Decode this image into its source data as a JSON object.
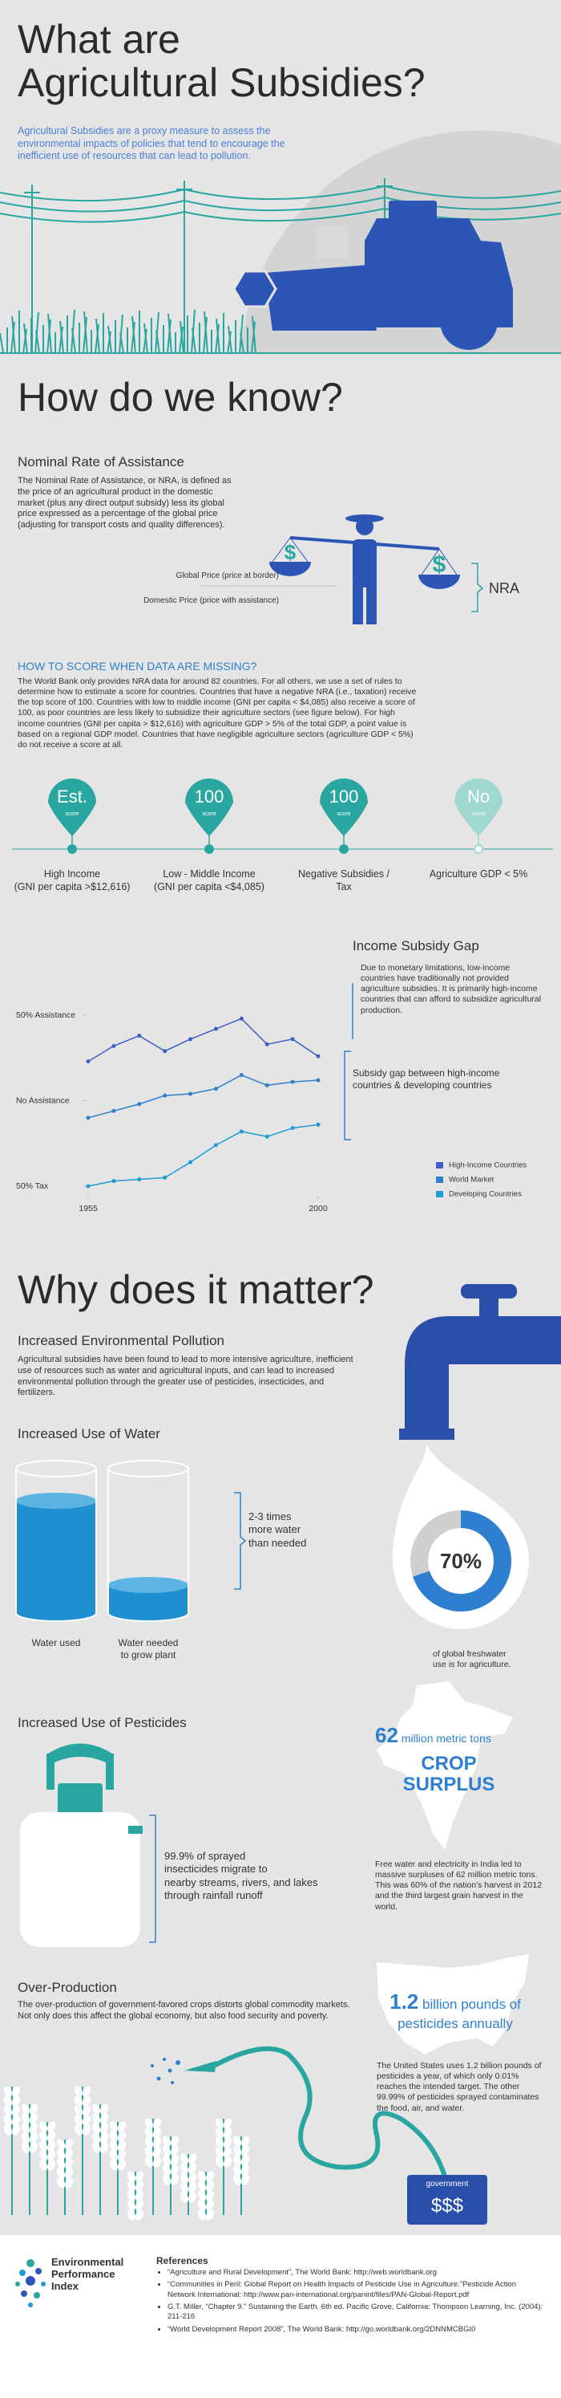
{
  "header": {
    "title": "What are\nAgricultural Subsidies?",
    "intro": "Agricultural Subsidies are a proxy measure to assess the environmental impacts of policies that tend to encourage the inefficient use of resources that can lead to pollution."
  },
  "how": {
    "title": "How do we know?",
    "nra_heading": "Nominal Rate of Assistance",
    "nra_text": "The Nominal Rate of Assistance, or NRA, is defined as the price of an agricultural product in the domestic market (plus any direct output subsidy) less its global price expressed as a percentage of the global price (adjusting for transport costs and quality differences).",
    "global_price": "Global Price (price at border)",
    "domestic_price": "Domestic Price (price with assistance)",
    "nra_label": "NRA",
    "missing_heading": "HOW TO SCORE WHEN DATA ARE MISSING?",
    "missing_text": "The World Bank only provides NRA data for around 82 countries. For all others, we use a set of rules to determine how to estimate a score for countries. Countries that have a negative NRA (i.e., taxation) receive the top score of 100. Countries with low to middle income (GNI per capita < $4,085) also receive a score of 100, as poor countries are less likely to subsidize their agriculture sectors (see figure below). For high income countries (GNI per capita > $12,616) with agriculture GDP > 5% of the total GDP, a point value is based on a regional GDP model. Countries that have negligible agriculture sectors (agriculture GDP < 5%) do not receive a score at all.",
    "pins": [
      {
        "value": "Est.",
        "unit": "score",
        "caption": "High Income\n(GNI per capita >$12,616)"
      },
      {
        "value": "100",
        "unit": "score",
        "caption": "Low - Middle Income\n(GNI per capita <$4,085)"
      },
      {
        "value": "100",
        "unit": "score",
        "caption": "Negative Subsidies /\nTax"
      },
      {
        "value": "No",
        "unit": "score",
        "caption": "Agriculture GDP < 5%"
      }
    ],
    "gap_heading": "Income Subsidy Gap",
    "gap_text": "Due to monetary limitations, low-income countries have traditionally not provided agriculture subsidies. It is primarily high-income countries that can afford to subsidize agricultural production.",
    "gap_note": "Subsidy gap between high-income countries & developing countries"
  },
  "chart_data": {
    "type": "line",
    "x": [
      1955,
      1960,
      1965,
      1970,
      1975,
      1980,
      1985,
      1990,
      1995,
      2000
    ],
    "xlim": [
      1955,
      2000
    ],
    "xticks": [
      1955,
      2000
    ],
    "ylim": [
      -50,
      50
    ],
    "yticks": [
      {
        "value": 50,
        "label": "50%  Assistance"
      },
      {
        "value": 0,
        "label": "No Assistance"
      },
      {
        "value": -50,
        "label": "50% Tax"
      }
    ],
    "legend": "bottom-right",
    "series": [
      {
        "name": "High-Income Countries",
        "color": "#3b5fc4",
        "values": [
          23,
          32,
          38,
          29,
          36,
          42,
          48,
          33,
          36,
          26
        ]
      },
      {
        "name": "World Market",
        "color": "#2f7fcc",
        "values": [
          -10,
          -6,
          -2,
          3,
          4,
          7,
          15,
          9,
          11,
          12
        ]
      },
      {
        "name": "Developing Countries",
        "color": "#1e9ad6",
        "values": [
          -50,
          -47,
          -46,
          -45,
          -36,
          -26,
          -18,
          -21,
          -16,
          -14
        ]
      }
    ]
  },
  "why": {
    "title": "Why does it matter?",
    "pollution_heading": "Increased Environmental Pollution",
    "pollution_text": "Agricultural subsidies have been found to lead to more intensive agriculture, inefficient use of resources such as water and agricultural inputs, and can lead to increased environmental pollution through the greater use of pesticides, insecticides, and fertilizers.",
    "water_heading": "Increased Use of Water",
    "water_note": "2-3 times\nmore water\nthan needed",
    "water_used": "Water used",
    "water_needed": "Water needed\nto grow plant",
    "freshwater": {
      "value": 70,
      "value_label": "70%",
      "caption": "of global freshwater\nuse is for agriculture."
    },
    "pesticides_heading": "Increased Use of Pesticides",
    "pesticides_note": "99.9% of sprayed\ninsecticides migrate to\nnearby streams, rivers, and lakes\nthrough rainfall runoff",
    "crop_number": "62",
    "crop_unit": " million metric tons",
    "crop_title": "CROP\nSURPLUS",
    "crop_text": "Free water and electricity in India led to massive surpluses of 62 million metric tons. This was 60% of the nation's harvest in 2012 and the third largest grain harvest in the world.",
    "overproduction_heading": "Over-Production",
    "overproduction_text": "The over-production of government-favored crops distorts global commodity markets. Not only does this affect the global economy, but also food security and poverty.",
    "us_number": "1.2",
    "us_unit": " billion pounds of\npesticides annually",
    "us_text": "The United States uses 1.2 billion pounds of pesticides a year, of which only 0.01% reaches the intended target. The other 99.99% of pesticides sprayed contaminates the food, air, and water.",
    "government": "government",
    "money": "$$$"
  },
  "footer": {
    "logo": "Environmental\nPerformance\nIndex",
    "references_heading": "References",
    "references": [
      "“Agriculture and Rural Development”, The World Bank: http://web.worldbank.org",
      "“Communities in Peril: Global Report on Health Impacts of Pesticide Use in Agriculture.”Pesticide Action Network International: http://www.pan-international.org/panint/files/PAN-Global-Report.pdf",
      "G.T. Miller, “Chapter 9.” Sustaining the Earth. 6th ed. Pacific Grove, California: Thompson Learning, Inc. (2004): 211-216",
      "“World Development Report 2008”, The World Bank: http://go.worldbank.org/2DNNMCBGI0"
    ]
  }
}
